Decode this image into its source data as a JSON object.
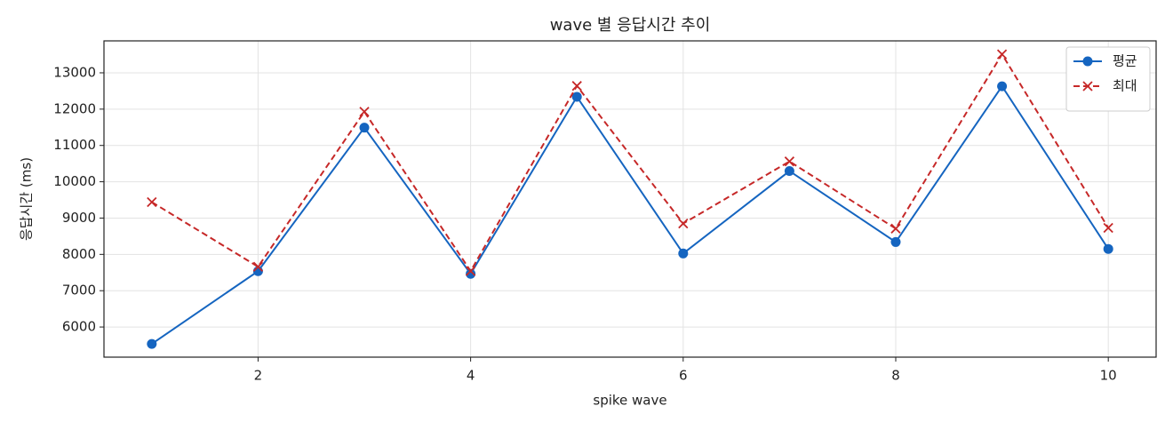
{
  "chart_data": {
    "type": "line",
    "title": "wave 별 응답시간 추이",
    "x_label": "spike wave",
    "y_label": "응답시간 (ms)",
    "x": [
      1,
      2,
      3,
      4,
      5,
      6,
      7,
      8,
      9,
      10
    ],
    "series": [
      {
        "name": "평균",
        "color": "#1565c0",
        "marker": "o",
        "linestyle": "solid",
        "values": [
          5535,
          7538,
          11490,
          7465,
          12340,
          8025,
          10295,
          8340,
          12630,
          8150
        ]
      },
      {
        "name": "최대",
        "color": "#c62828",
        "marker": "x",
        "linestyle": "dashed",
        "values": [
          9440,
          7660,
          11930,
          7540,
          12640,
          8850,
          10560,
          8710,
          13510,
          8730
        ]
      }
    ],
    "xlim": [
      0.55,
      10.45
    ],
    "xticks": [
      2,
      4,
      6,
      8,
      10
    ],
    "ylim": [
      5170,
      13880
    ],
    "yticks": [
      6000,
      7000,
      8000,
      9000,
      10000,
      11000,
      12000,
      13000
    ],
    "grid": true,
    "legend": "upper right"
  }
}
